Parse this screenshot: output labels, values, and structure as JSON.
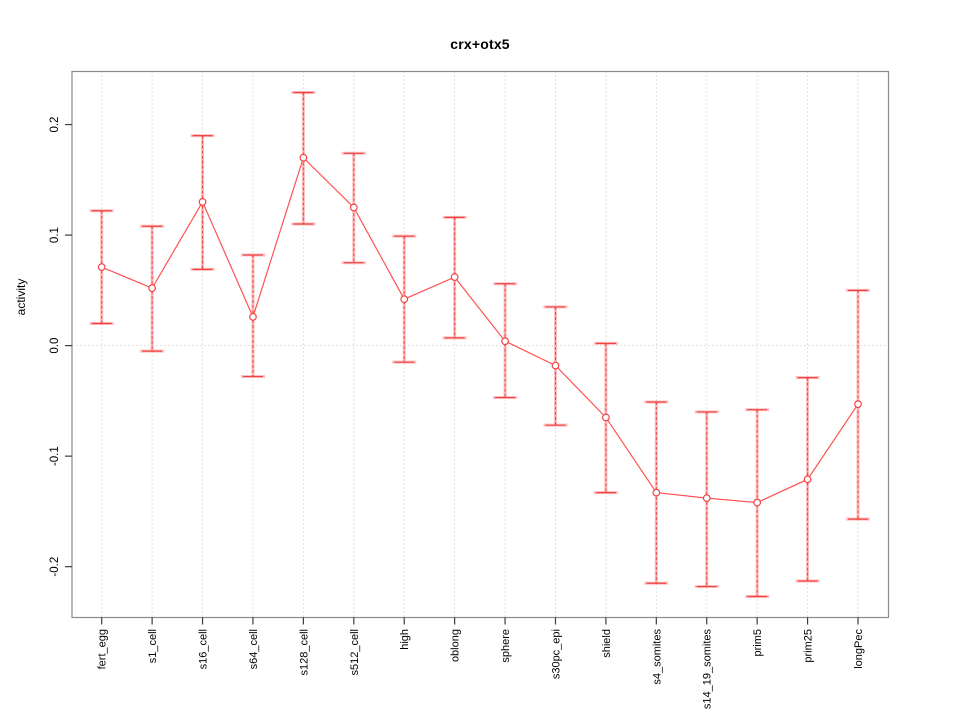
{
  "page": {
    "background": "#ffffff"
  },
  "chart_data": {
    "type": "line",
    "title": "crx+otx5",
    "xlabel": "",
    "ylabel": "activity",
    "legend": "none",
    "grid": {
      "vertical": "dotted line at every category",
      "horizontal": "dotted line at y=0 only"
    },
    "point_marker": "open-circle",
    "error_bars": true,
    "categories": [
      "fert_egg",
      "s1_cell",
      "s16_cell",
      "s64_cell",
      "s128_cell",
      "s512_cell",
      "high",
      "oblong",
      "sphere",
      "s30pc_epi",
      "shield",
      "s4_somites",
      "s14_19_somites",
      "prim5",
      "prim25",
      "longPec"
    ],
    "series": [
      {
        "name": "activity",
        "values": [
          0.071,
          0.052,
          0.13,
          0.026,
          0.17,
          0.125,
          0.042,
          0.062,
          0.004,
          -0.018,
          -0.065,
          -0.133,
          -0.138,
          -0.142,
          -0.121,
          -0.053
        ],
        "upper": [
          0.122,
          0.108,
          0.19,
          0.082,
          0.229,
          0.174,
          0.099,
          0.116,
          0.056,
          0.035,
          0.002,
          -0.051,
          -0.06,
          -0.058,
          -0.029,
          0.05
        ],
        "lower": [
          0.02,
          -0.005,
          0.069,
          -0.028,
          0.11,
          0.075,
          -0.015,
          0.007,
          -0.047,
          -0.072,
          -0.133,
          -0.215,
          -0.218,
          -0.227,
          -0.213,
          -0.157
        ]
      }
    ],
    "y_ticks": {
      "values": [
        0.2,
        0.1,
        0.0,
        -0.1,
        -0.2
      ],
      "labels": [
        "0.2",
        "0.1",
        "0.0",
        "-0.1",
        "-0.2"
      ]
    },
    "ylim": [
      -0.246,
      0.248
    ],
    "zero_line_at": 0.0,
    "colors": {
      "series": "#ff5252",
      "error_crisp": "#ee4444",
      "error_soft": "rgba(255,90,90,0.40)",
      "grid": "#d2d2d2",
      "box": "#8a8a8a",
      "tick": "#3d3d3d",
      "text": "#000000"
    }
  }
}
